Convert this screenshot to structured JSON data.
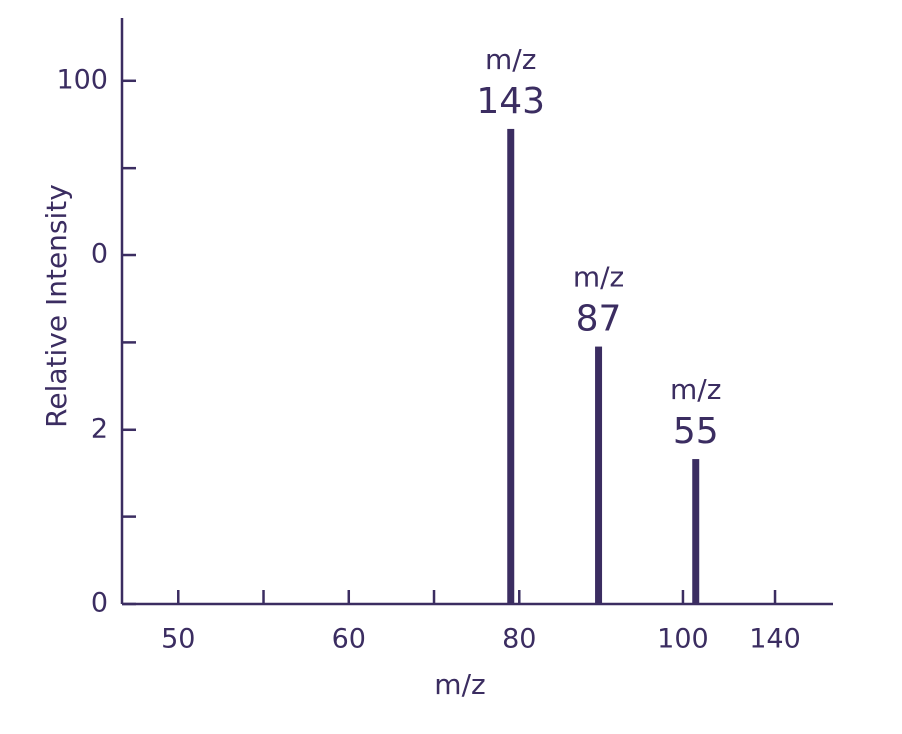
{
  "chart_data": {
    "type": "bar",
    "x_label": "m/z",
    "y_label": "Relative Intensity",
    "x": [
      89.0,
      99.3,
      110.7
    ],
    "values": [
      90.8,
      49.2,
      27.7
    ],
    "annotations": [
      {
        "line1": "m/z",
        "line2": "143"
      },
      {
        "line1": "m/z",
        "line2": "87"
      },
      {
        "line1": "m/z",
        "line2": "55"
      }
    ],
    "color": "#3b2d61",
    "xlim": [
      43.4,
      126.8
    ],
    "xticks": [
      50,
      {
        "value": 70,
        "label": "60"
      },
      {
        "value": 90,
        "label": "80"
      },
      {
        "value": 109.2,
        "label": "100"
      },
      {
        "value": 120,
        "label": "140"
      }
    ],
    "xminorticks": [
      60,
      80
    ],
    "ylim": [
      0,
      112
    ],
    "yticks": [
      0,
      {
        "value": 33.3,
        "label": "2"
      },
      {
        "value": 66.7,
        "label": "0"
      },
      100
    ],
    "yminorticks": [
      16.7,
      50,
      83.3
    ]
  }
}
